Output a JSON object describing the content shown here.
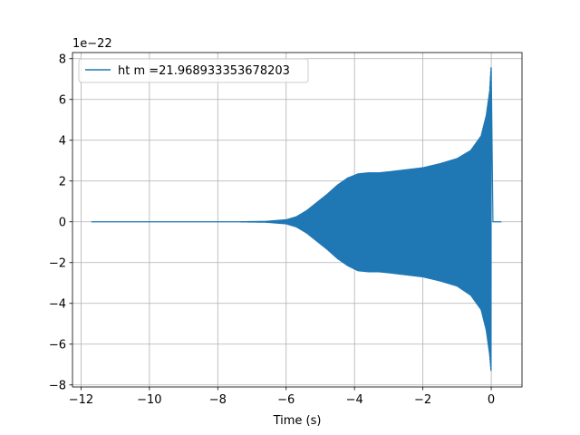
{
  "chart_data": {
    "type": "line",
    "title": "",
    "xlabel": "Time (s)",
    "ylabel": "",
    "y_offset_label": "1e−22",
    "xlim": [
      -12.25,
      0.9
    ],
    "ylim": [
      -8.1,
      8.3
    ],
    "x_ticks": [
      -12,
      -10,
      -8,
      -6,
      -4,
      -2,
      0
    ],
    "x_tick_labels": [
      "−12",
      "−10",
      "−8",
      "−6",
      "−4",
      "−2",
      "0"
    ],
    "y_ticks": [
      -8,
      -6,
      -4,
      -2,
      0,
      2,
      4,
      6,
      8
    ],
    "y_tick_labels": [
      "−8",
      "−6",
      "−4",
      "−2",
      "0",
      "2",
      "4",
      "6",
      "8"
    ],
    "grid": true,
    "legend_position": "upper-left",
    "colors": {
      "series": "#1f77b4",
      "grid": "#b0b0b0",
      "frame": "#000000"
    },
    "series": [
      {
        "name": "ht m =21.968933353678203",
        "x_range": [
          -11.7,
          0.3
        ],
        "merger_time": 0.0,
        "envelope_upper": [
          [
            -11.7,
            0.0
          ],
          [
            -7.5,
            0.0
          ],
          [
            -6.6,
            0.02
          ],
          [
            -6.0,
            0.1
          ],
          [
            -5.7,
            0.25
          ],
          [
            -5.4,
            0.55
          ],
          [
            -5.1,
            0.95
          ],
          [
            -4.8,
            1.35
          ],
          [
            -4.5,
            1.8
          ],
          [
            -4.2,
            2.15
          ],
          [
            -3.9,
            2.35
          ],
          [
            -3.6,
            2.4
          ],
          [
            -3.3,
            2.4
          ],
          [
            -3.0,
            2.45
          ],
          [
            -2.5,
            2.55
          ],
          [
            -2.0,
            2.65
          ],
          [
            -1.5,
            2.85
          ],
          [
            -1.0,
            3.1
          ],
          [
            -0.6,
            3.5
          ],
          [
            -0.3,
            4.2
          ],
          [
            -0.15,
            5.2
          ],
          [
            -0.05,
            6.4
          ],
          [
            -0.01,
            7.55
          ]
        ],
        "envelope_lower": [
          [
            -11.7,
            0.0
          ],
          [
            -7.5,
            0.0
          ],
          [
            -6.6,
            -0.02
          ],
          [
            -6.0,
            -0.1
          ],
          [
            -5.7,
            -0.25
          ],
          [
            -5.4,
            -0.55
          ],
          [
            -5.1,
            -0.95
          ],
          [
            -4.8,
            -1.35
          ],
          [
            -4.5,
            -1.8
          ],
          [
            -4.2,
            -2.15
          ],
          [
            -3.9,
            -2.4
          ],
          [
            -3.6,
            -2.45
          ],
          [
            -3.3,
            -2.45
          ],
          [
            -3.0,
            -2.5
          ],
          [
            -2.5,
            -2.6
          ],
          [
            -2.0,
            -2.7
          ],
          [
            -1.5,
            -2.9
          ],
          [
            -1.0,
            -3.15
          ],
          [
            -0.6,
            -3.6
          ],
          [
            -0.3,
            -4.3
          ],
          [
            -0.15,
            -5.3
          ],
          [
            -0.05,
            -6.5
          ],
          [
            -0.01,
            -7.3
          ]
        ],
        "ringdown_end": 0.05
      }
    ]
  }
}
